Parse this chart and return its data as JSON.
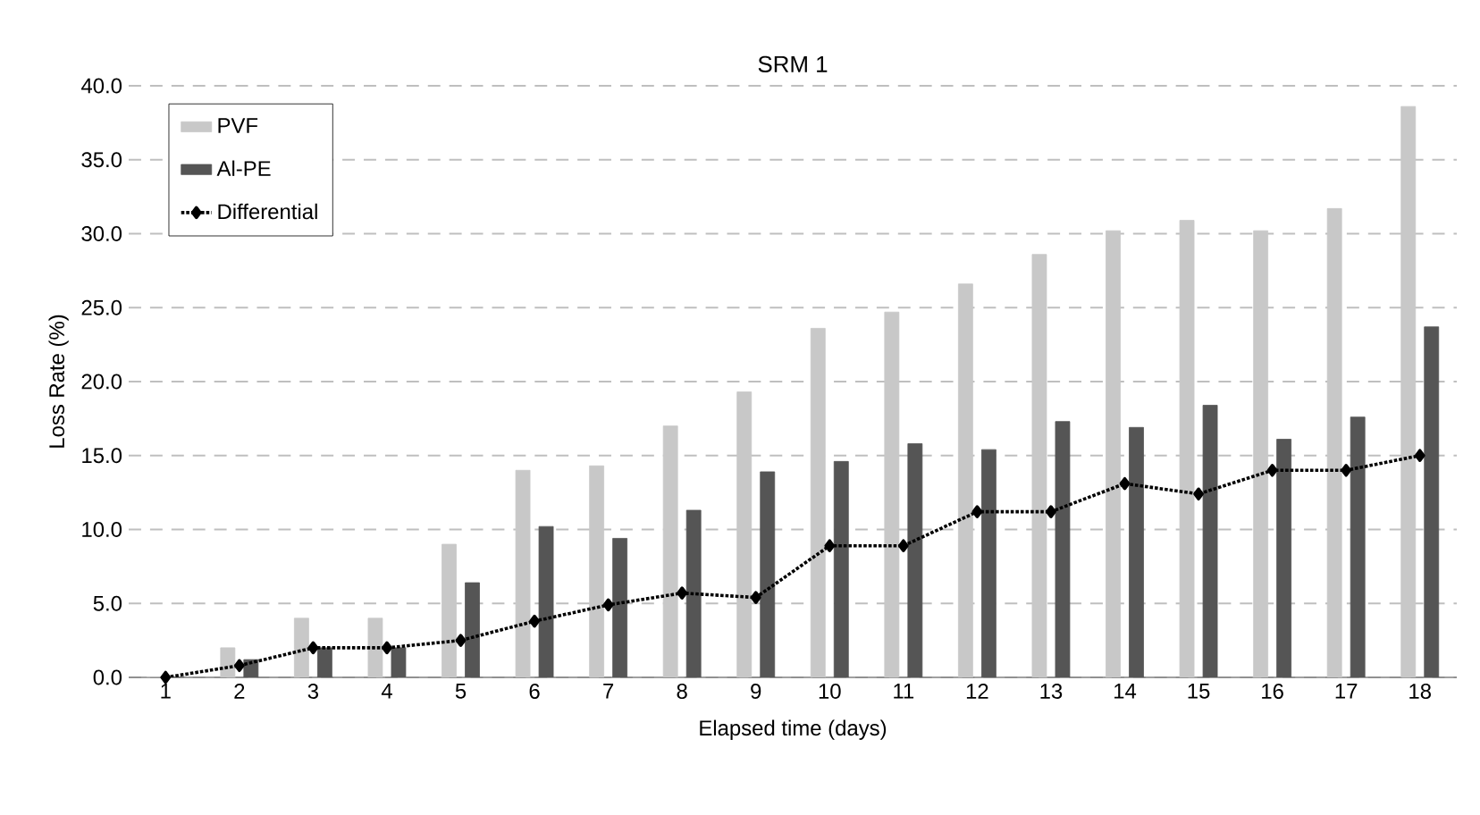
{
  "chart_data": {
    "type": "bar",
    "title": "SRM  1",
    "xlabel": "Elapsed time (days)",
    "ylabel": "Loss Rate (%)",
    "categories": [
      "1",
      "2",
      "3",
      "4",
      "5",
      "6",
      "7",
      "8",
      "9",
      "10",
      "11",
      "12",
      "13",
      "14",
      "15",
      "16",
      "17",
      "18"
    ],
    "series": [
      {
        "name": "PVF",
        "color": "#c8c8c8",
        "values": [
          0,
          2.0,
          4.0,
          4.0,
          9.0,
          14.0,
          14.3,
          17.0,
          19.3,
          23.6,
          24.7,
          26.6,
          28.6,
          30.2,
          30.9,
          30.2,
          31.7,
          38.6
        ]
      },
      {
        "name": "Al-PE",
        "color": "#555555",
        "values": [
          0,
          1.2,
          2.0,
          2.0,
          6.4,
          10.2,
          9.4,
          11.3,
          13.9,
          14.6,
          15.8,
          15.4,
          17.3,
          16.9,
          18.4,
          16.1,
          17.6,
          23.7
        ]
      },
      {
        "name": "Differential",
        "type": "line",
        "color": "#000000",
        "marker": "diamond",
        "line_style": "dotted",
        "values": [
          0,
          0.8,
          2.0,
          2.0,
          2.5,
          3.8,
          4.9,
          5.7,
          5.4,
          8.9,
          8.9,
          11.2,
          11.2,
          13.1,
          12.4,
          14.0,
          14.0,
          15.0
        ]
      }
    ],
    "ylim": [
      0,
      40
    ],
    "yticks": [
      {
        "value": 0,
        "label": "0.0"
      },
      {
        "value": 5,
        "label": "5.0"
      },
      {
        "value": 10,
        "label": "10.0"
      },
      {
        "value": 15,
        "label": "15.0"
      },
      {
        "value": 20,
        "label": "20.0"
      },
      {
        "value": 25,
        "label": "25.0"
      },
      {
        "value": 30,
        "label": "30.0"
      },
      {
        "value": 35,
        "label": "35.0"
      },
      {
        "value": 40,
        "label": "40.0"
      }
    ],
    "grid": "y",
    "legend": "top left"
  }
}
